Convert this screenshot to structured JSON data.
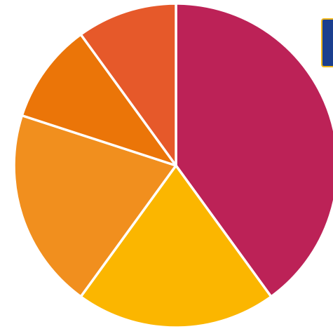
{
  "chart_data": {
    "type": "pie",
    "title": "",
    "start_angle_deg": 0,
    "direction": "clockwise",
    "slices": [
      {
        "label": "",
        "value": 40,
        "color": "#bc2257"
      },
      {
        "label": "",
        "value": 20,
        "color": "#fbb600"
      },
      {
        "label": "",
        "value": 20,
        "color": "#f18f1e"
      },
      {
        "label": "",
        "value": 10,
        "color": "#eb7508"
      },
      {
        "label": "",
        "value": 10,
        "color": "#e6592a"
      }
    ],
    "legend": "none",
    "slice_border_color": "#ffffff"
  },
  "partial_badge": {
    "fill_color": "#1b3f8f",
    "border_color": "#f2b81a"
  }
}
